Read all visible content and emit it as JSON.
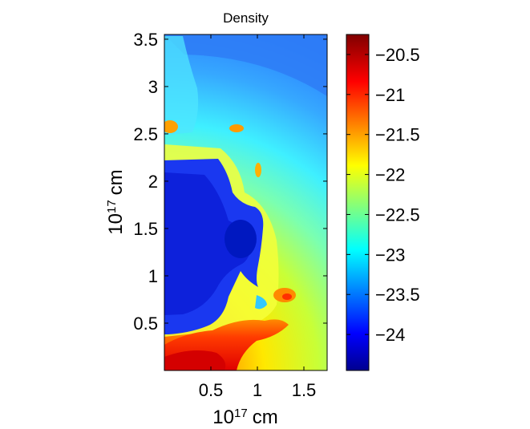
{
  "chart_data": {
    "type": "heatmap",
    "title": "Density",
    "xlabel_base": "10",
    "xlabel_exp": "17",
    "xlabel_unit": "cm",
    "ylabel_base": "10",
    "ylabel_exp": "17",
    "ylabel_unit": "cm",
    "xlim": [
      0,
      1.75
    ],
    "ylim": [
      0,
      3.55
    ],
    "xticks": [
      0.5,
      1,
      1.5
    ],
    "xtick_labels": [
      "0.5",
      "1",
      "1.5"
    ],
    "yticks": [
      0.5,
      1,
      1.5,
      2,
      2.5,
      3,
      3.5
    ],
    "ytick_labels": [
      "0.5",
      "1",
      "1.5",
      "2",
      "2.5",
      "3",
      "3.5"
    ],
    "colormap": "jet",
    "colorbar": {
      "range": [
        -24.45,
        -20.25
      ],
      "ticks": [
        -24,
        -23.5,
        -23,
        -22.5,
        -22,
        -21.5,
        -21,
        -20.5
      ],
      "tick_labels": [
        "−24",
        "−23.5",
        "−23",
        "−22.5",
        "−22",
        "−21.5",
        "−21",
        "−20.5"
      ]
    },
    "regions": [
      {
        "description": "outer shell upper-right",
        "value": -23.8
      },
      {
        "description": "outer ambient",
        "value": -23.3
      },
      {
        "description": "yellow envelope",
        "value": -22.1
      },
      {
        "description": "inner cavity",
        "value": -24.1
      },
      {
        "description": "dense base near origin",
        "value": -20.6
      }
    ]
  }
}
